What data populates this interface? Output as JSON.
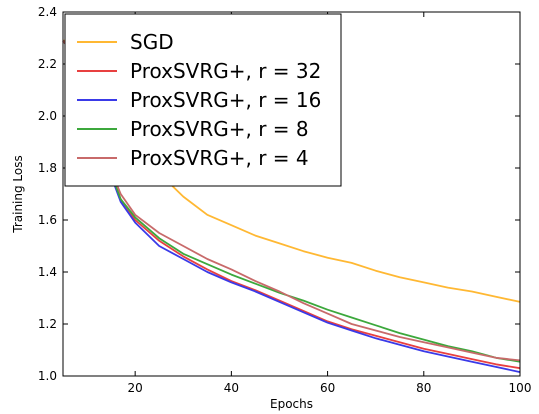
{
  "chart_data": {
    "type": "line",
    "xlabel": "Epochs",
    "ylabel": "Training Loss",
    "xlim": [
      5,
      100
    ],
    "ylim": [
      1.0,
      2.4
    ],
    "xticks": [
      20,
      40,
      60,
      80,
      100
    ],
    "yticks": [
      1.0,
      1.2,
      1.4,
      1.6,
      1.8,
      2.0,
      2.2,
      2.4
    ],
    "xtick_labels": [
      "20",
      "40",
      "60",
      "80",
      "100"
    ],
    "ytick_labels": [
      "1.0",
      "1.2",
      "1.4",
      "1.6",
      "1.8",
      "2.0",
      "2.2",
      "2.4"
    ],
    "grid": false,
    "legend_position": "top-left",
    "series": [
      {
        "name": "SGD",
        "color": "#ffb833",
        "x": [
          5,
          7,
          9,
          11,
          13,
          15,
          20,
          25,
          30,
          35,
          40,
          45,
          50,
          55,
          60,
          65,
          70,
          75,
          80,
          85,
          90,
          95,
          100
        ],
        "y": [
          2.29,
          2.29,
          2.25,
          2.19,
          2.12,
          2.05,
          1.91,
          1.78,
          1.69,
          1.62,
          1.58,
          1.54,
          1.51,
          1.48,
          1.455,
          1.435,
          1.405,
          1.38,
          1.36,
          1.34,
          1.325,
          1.305,
          1.285
        ]
      },
      {
        "name": "ProxSVRG+, r = 32",
        "color": "#e84040",
        "x": [
          5,
          7,
          9,
          11,
          13,
          15,
          17,
          20,
          25,
          30,
          35,
          40,
          45,
          50,
          55,
          60,
          65,
          70,
          75,
          80,
          85,
          90,
          95,
          100
        ],
        "y": [
          2.29,
          2.24,
          2.15,
          2.03,
          1.9,
          1.78,
          1.68,
          1.6,
          1.52,
          1.46,
          1.41,
          1.365,
          1.33,
          1.29,
          1.25,
          1.21,
          1.18,
          1.155,
          1.13,
          1.105,
          1.085,
          1.065,
          1.045,
          1.03
        ]
      },
      {
        "name": "ProxSVRG+, r = 16",
        "color": "#3a3ae8",
        "x": [
          5,
          7,
          9,
          11,
          13,
          15,
          17,
          20,
          25,
          30,
          35,
          40,
          45,
          50,
          55,
          60,
          65,
          70,
          75,
          80,
          85,
          90,
          95,
          100
        ],
        "y": [
          2.29,
          2.24,
          2.15,
          2.02,
          1.89,
          1.77,
          1.67,
          1.59,
          1.5,
          1.45,
          1.4,
          1.36,
          1.325,
          1.285,
          1.245,
          1.205,
          1.175,
          1.145,
          1.12,
          1.095,
          1.075,
          1.055,
          1.035,
          1.015
        ]
      },
      {
        "name": "ProxSVRG+, r = 8",
        "color": "#3ca83c",
        "x": [
          5,
          7,
          9,
          11,
          13,
          15,
          17,
          20,
          25,
          30,
          35,
          40,
          45,
          50,
          55,
          60,
          65,
          70,
          75,
          80,
          85,
          90,
          95,
          100
        ],
        "y": [
          2.29,
          2.24,
          2.15,
          2.03,
          1.9,
          1.78,
          1.68,
          1.61,
          1.53,
          1.47,
          1.43,
          1.39,
          1.355,
          1.32,
          1.29,
          1.255,
          1.225,
          1.195,
          1.165,
          1.14,
          1.115,
          1.095,
          1.07,
          1.055
        ]
      },
      {
        "name": "ProxSVRG+, r = 4",
        "color": "#c86a6a",
        "x": [
          5,
          7,
          9,
          11,
          13,
          15,
          17,
          20,
          25,
          30,
          35,
          40,
          45,
          50,
          55,
          60,
          65,
          70,
          75,
          80,
          85,
          90,
          95,
          100
        ],
        "y": [
          2.29,
          2.24,
          2.16,
          2.04,
          1.91,
          1.79,
          1.7,
          1.62,
          1.55,
          1.5,
          1.45,
          1.41,
          1.365,
          1.325,
          1.28,
          1.24,
          1.2,
          1.175,
          1.15,
          1.13,
          1.11,
          1.09,
          1.07,
          1.06
        ]
      }
    ]
  }
}
